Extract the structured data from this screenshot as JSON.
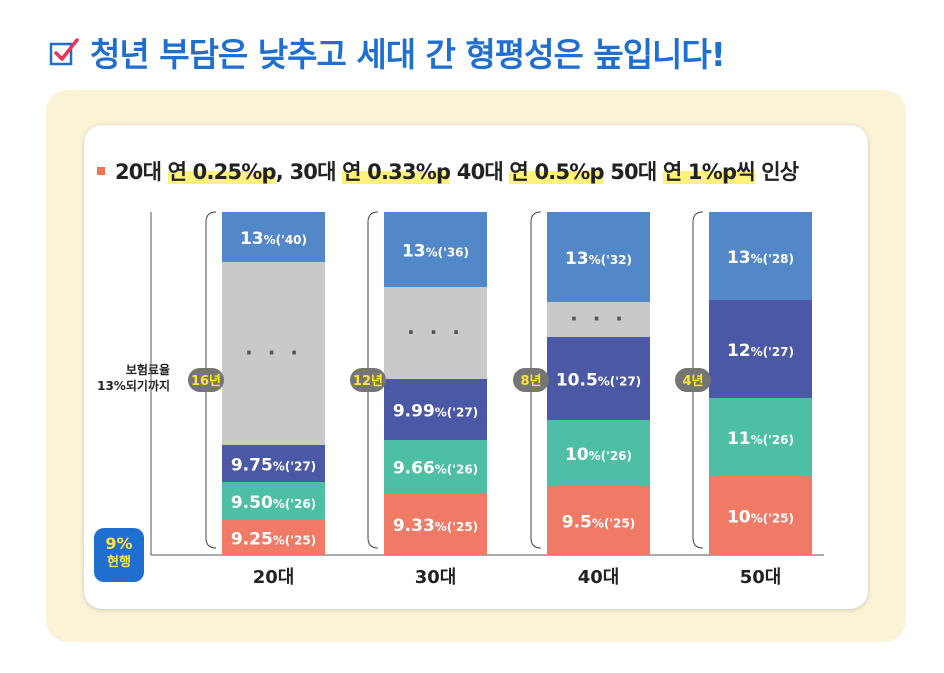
{
  "page": {
    "title": "청년 부담은 낮추고 세대 간 형평성은 높입니다!",
    "subtitle_parts": [
      {
        "text": "20대 ",
        "hl": false
      },
      {
        "text": "연 0.25%p",
        "hl": true
      },
      {
        "text": ", 30대 ",
        "hl": false
      },
      {
        "text": "연 0.33%p",
        "hl": true
      },
      {
        "text": " 40대 ",
        "hl": false
      },
      {
        "text": "연 0.5%p",
        "hl": true
      },
      {
        "text": " 50대 ",
        "hl": false
      },
      {
        "text": "연 1%p씩",
        "hl": true
      },
      {
        "text": " 인상",
        "hl": false
      }
    ],
    "note_line1": "보험료율",
    "note_line2": "13%되기까지",
    "current_pct": "9%",
    "current_label": "현행"
  },
  "colors": {
    "title": "#1e6fd0",
    "gap": "#c8c9cb",
    "y25": "#f17a66",
    "y26": "#4dbfa4",
    "y27": "#4a58a6",
    "target": "#5288c8",
    "years_badge": "#757575",
    "years_text": "#ffe33b"
  },
  "chart_data": {
    "type": "bar",
    "subtype": "stacked",
    "categories": [
      "20대",
      "30대",
      "40대",
      "50대"
    ],
    "years_to_target": [
      "16년",
      "12년",
      "8년",
      "4년"
    ],
    "segments": [
      [
        {
          "value": "9.25",
          "year": "'25",
          "kind": "y25"
        },
        {
          "value": "9.50",
          "year": "'26",
          "kind": "y26"
        },
        {
          "value": "9.75",
          "year": "'27",
          "kind": "y27"
        },
        {
          "value": "…",
          "kind": "gap"
        },
        {
          "value": "13",
          "year": "'40",
          "kind": "target"
        }
      ],
      [
        {
          "value": "9.33",
          "year": "'25",
          "kind": "y25"
        },
        {
          "value": "9.66",
          "year": "'26",
          "kind": "y26"
        },
        {
          "value": "9.99",
          "year": "'27",
          "kind": "y27"
        },
        {
          "value": "…",
          "kind": "gap"
        },
        {
          "value": "13",
          "year": "'36",
          "kind": "target"
        }
      ],
      [
        {
          "value": "9.5",
          "year": "'25",
          "kind": "y25"
        },
        {
          "value": "10",
          "year": "'26",
          "kind": "y26"
        },
        {
          "value": "10.5",
          "year": "'27",
          "kind": "y27"
        },
        {
          "value": "…",
          "kind": "gap"
        },
        {
          "value": "13",
          "year": "'32",
          "kind": "target"
        }
      ],
      [
        {
          "value": "10",
          "year": "'25",
          "kind": "y25"
        },
        {
          "value": "11",
          "year": "'26",
          "kind": "y26"
        },
        {
          "value": "12",
          "year": "'27",
          "kind": "y27"
        },
        {
          "value": "13",
          "year": "'28",
          "kind": "target"
        }
      ]
    ],
    "unit": "%",
    "baseline": "9%"
  }
}
